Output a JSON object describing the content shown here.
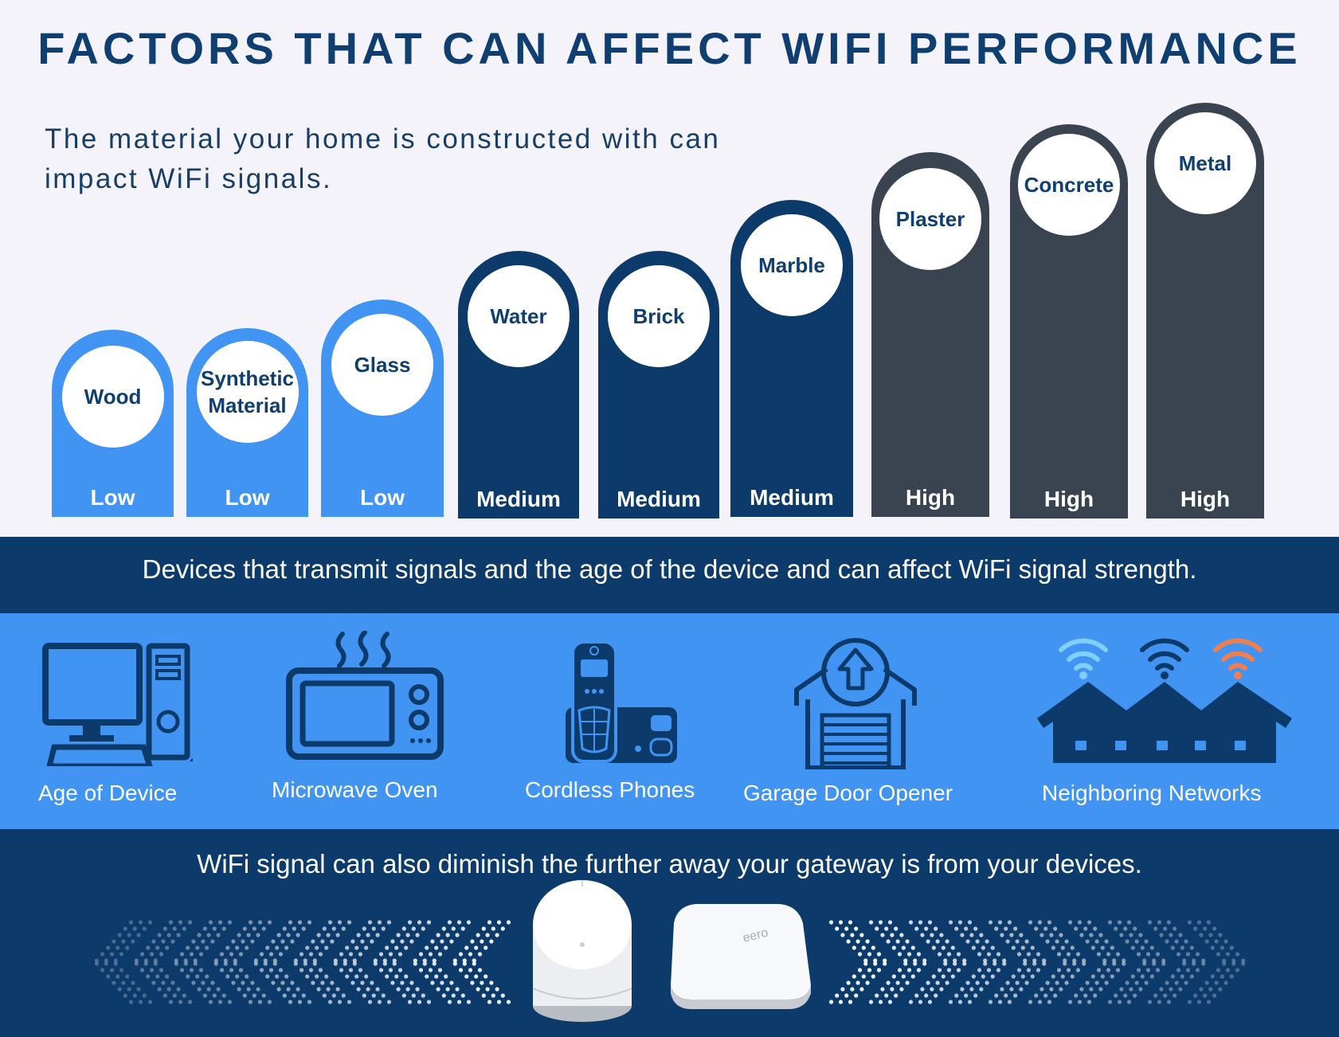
{
  "title": "FACTORS THAT CAN AFFECT WIFI PERFORMANCE",
  "intro": "The material your home is constructed with can impact WiFi signals.",
  "materials": [
    {
      "name": "Wood",
      "level": "Low"
    },
    {
      "name": "Synthetic Material",
      "level": "Low"
    },
    {
      "name": "Glass",
      "level": "Low"
    },
    {
      "name": "Water",
      "level": "Medium"
    },
    {
      "name": "Brick",
      "level": "Medium"
    },
    {
      "name": "Marble",
      "level": "Medium"
    },
    {
      "name": "Plaster",
      "level": "High"
    },
    {
      "name": "Concrete",
      "level": "High"
    },
    {
      "name": "Metal",
      "level": "High"
    }
  ],
  "devices_heading": "Devices that transmit signals and the age of the device and can affect WiFi signal strength.",
  "devices": [
    {
      "label": "Age of Device",
      "icon": "computer-icon"
    },
    {
      "label": "Microwave Oven",
      "icon": "microwave-icon"
    },
    {
      "label": "Cordless Phones",
      "icon": "cordless-phone-icon"
    },
    {
      "label": "Garage Door Opener",
      "icon": "garage-door-icon"
    },
    {
      "label": "Neighboring Networks",
      "icon": "houses-wifi-icon"
    }
  ],
  "distance_heading": "WiFi signal can also diminish the further away your gateway is from your devices.",
  "router_brand": "eero",
  "colors": {
    "title": "#0f3f70",
    "low": "#4194f1",
    "medium": "#0b3a6b",
    "high": "#3a4350",
    "band_dark": "#0b3a6b",
    "band_light": "#4194f1",
    "wifi_accent": "#ef7f4f"
  }
}
